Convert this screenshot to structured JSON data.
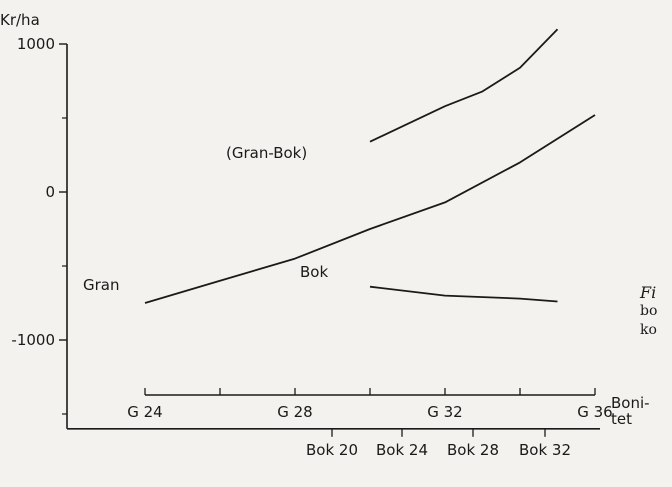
{
  "colors": {
    "line": "#1a1a1a",
    "background": "#f4f2ee"
  },
  "caption": {
    "lines": [
      "Fi",
      "bo",
      "ko"
    ]
  },
  "chart_data": {
    "type": "line",
    "ylabel": "Kr/ha",
    "xlabel": "Boni-\ntet",
    "ylim": [
      -1600,
      1000
    ],
    "xlim": [
      24,
      36
    ],
    "y_ticks": [
      1000,
      0,
      -1000
    ],
    "y_tick_labels": [
      "1000",
      "0",
      "-1000"
    ],
    "x_ticks_gran": [
      24,
      28,
      32,
      36
    ],
    "x_tick_labels_gran": [
      "G 24",
      "G 28",
      "G 32",
      "G 36"
    ],
    "x_tick_labels_bok": [
      "Bok 20",
      "Bok 24",
      "Bok 28",
      "Bok 32"
    ],
    "series": [
      {
        "name": "Gran",
        "x": [
          24,
          26,
          28,
          30,
          32,
          34,
          36
        ],
        "y": [
          -750,
          -600,
          -450,
          -250,
          -70,
          200,
          520
        ]
      },
      {
        "name": "(Gran-Bok)",
        "x": [
          30,
          32,
          33,
          34,
          35
        ],
        "y": [
          340,
          580,
          680,
          840,
          1100
        ]
      },
      {
        "name": "Bok",
        "x": [
          30,
          32,
          34,
          35
        ],
        "y": [
          -640,
          -700,
          -720,
          -740
        ]
      }
    ]
  }
}
